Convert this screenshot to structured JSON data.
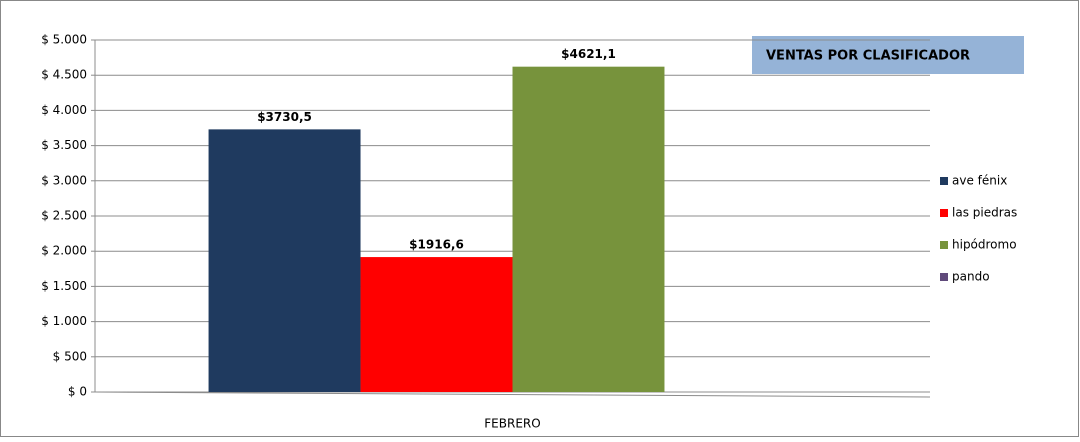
{
  "chart_data": {
    "type": "bar",
    "title": "VENTAS POR CLASIFICADOR",
    "categories": [
      "FEBRERO"
    ],
    "series": [
      {
        "name": "ave fénix",
        "color": "#1f3a5f",
        "values": [
          3730.5
        ],
        "value_labels": [
          "$3730,5"
        ]
      },
      {
        "name": "las piedras",
        "color": "#ff0000",
        "values": [
          1916.6
        ],
        "value_labels": [
          "$1916,6"
        ]
      },
      {
        "name": "hipódromo",
        "color": "#77933c",
        "values": [
          4621.1
        ],
        "value_labels": [
          "$4621,1"
        ]
      },
      {
        "name": "pando",
        "color": "#604a7b",
        "values": [
          null
        ]
      }
    ],
    "ylim": [
      0,
      5000
    ],
    "yticks": [
      {
        "value": 0,
        "label": "$ 0"
      },
      {
        "value": 500,
        "label": "$ 500"
      },
      {
        "value": 1000,
        "label": "$ 1.000"
      },
      {
        "value": 1500,
        "label": "$ 1.500"
      },
      {
        "value": 2000,
        "label": "$ 2.000"
      },
      {
        "value": 2500,
        "label": "$ 2.500"
      },
      {
        "value": 3000,
        "label": "$ 3.000"
      },
      {
        "value": 3500,
        "label": "$ 3.500"
      },
      {
        "value": 4000,
        "label": "$ 4.000"
      },
      {
        "value": 4500,
        "label": "$ 4.500"
      },
      {
        "value": 5000,
        "label": "$ 5.000"
      }
    ],
    "grid": true,
    "legend": "right"
  }
}
